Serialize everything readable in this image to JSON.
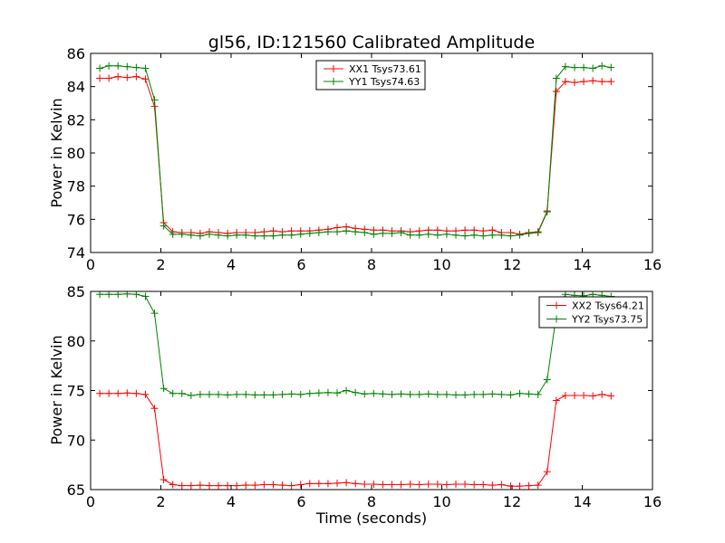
{
  "chart_data": [
    {
      "type": "line",
      "title": "gl56, ID:121560 Calibrated Amplitude",
      "xlabel": "",
      "ylabel": "Power in Kelvin",
      "xlim": [
        0,
        16
      ],
      "ylim": [
        74,
        86
      ],
      "xticks": [
        "0",
        "2",
        "4",
        "6",
        "8",
        "10",
        "12",
        "14",
        "16"
      ],
      "yticks": [
        "74",
        "76",
        "78",
        "80",
        "82",
        "84",
        "86"
      ],
      "grid": false,
      "legend": "top-center",
      "x": [
        0.26,
        0.52,
        0.78,
        1.04,
        1.3,
        1.56,
        1.82,
        2.08,
        2.34,
        2.6,
        2.86,
        3.12,
        3.38,
        3.64,
        3.9,
        4.16,
        4.42,
        4.68,
        4.94,
        5.2,
        5.46,
        5.72,
        5.98,
        6.24,
        6.5,
        6.76,
        7.02,
        7.28,
        7.54,
        7.8,
        8.06,
        8.32,
        8.58,
        8.84,
        9.1,
        9.36,
        9.62,
        9.88,
        10.14,
        10.4,
        10.66,
        10.92,
        11.18,
        11.44,
        11.7,
        11.96,
        12.22,
        12.48,
        12.74,
        13.0,
        13.26,
        13.52,
        13.78,
        14.04,
        14.3,
        14.56,
        14.82
      ],
      "series": [
        {
          "name": "XX1 Tsys73.61",
          "color": "#ff0000",
          "values": [
            84.5,
            84.5,
            84.6,
            84.55,
            84.6,
            84.45,
            82.8,
            75.8,
            75.25,
            75.2,
            75.2,
            75.15,
            75.25,
            75.2,
            75.15,
            75.2,
            75.2,
            75.2,
            75.25,
            75.3,
            75.25,
            75.3,
            75.3,
            75.3,
            75.35,
            75.4,
            75.5,
            75.55,
            75.45,
            75.4,
            75.35,
            75.35,
            75.3,
            75.3,
            75.25,
            75.3,
            75.35,
            75.35,
            75.3,
            75.3,
            75.35,
            75.35,
            75.3,
            75.35,
            75.2,
            75.2,
            75.1,
            75.2,
            75.25,
            76.5,
            83.7,
            84.3,
            84.25,
            84.3,
            84.35,
            84.3,
            84.3
          ]
        },
        {
          "name": "YY1 Tsys74.63",
          "color": "#008000",
          "values": [
            85.1,
            85.25,
            85.25,
            85.2,
            85.15,
            85.1,
            83.2,
            75.6,
            75.1,
            75.1,
            75.05,
            75.0,
            75.1,
            75.05,
            75.0,
            75.05,
            75.05,
            75.0,
            75.0,
            75.0,
            75.05,
            75.05,
            75.1,
            75.15,
            75.2,
            75.25,
            75.25,
            75.3,
            75.25,
            75.2,
            75.1,
            75.15,
            75.15,
            75.2,
            75.05,
            75.05,
            75.1,
            75.05,
            75.1,
            75.05,
            75.0,
            75.05,
            75.0,
            75.05,
            75.05,
            75.0,
            75.05,
            75.15,
            75.2,
            76.45,
            84.5,
            85.2,
            85.15,
            85.15,
            85.1,
            85.25,
            85.15
          ]
        }
      ]
    },
    {
      "type": "line",
      "title": "",
      "xlabel": "Time (seconds)",
      "ylabel": "Power in Kelvin",
      "xlim": [
        0,
        16
      ],
      "ylim": [
        65,
        85
      ],
      "xticks": [
        "0",
        "2",
        "4",
        "6",
        "8",
        "10",
        "12",
        "14",
        "16"
      ],
      "yticks": [
        "65",
        "70",
        "75",
        "80",
        "85"
      ],
      "grid": false,
      "legend": "top-right",
      "x": [
        0.26,
        0.52,
        0.78,
        1.04,
        1.3,
        1.56,
        1.82,
        2.08,
        2.34,
        2.6,
        2.86,
        3.12,
        3.38,
        3.64,
        3.9,
        4.16,
        4.42,
        4.68,
        4.94,
        5.2,
        5.46,
        5.72,
        5.98,
        6.24,
        6.5,
        6.76,
        7.02,
        7.28,
        7.54,
        7.8,
        8.06,
        8.32,
        8.58,
        8.84,
        9.1,
        9.36,
        9.62,
        9.88,
        10.14,
        10.4,
        10.66,
        10.92,
        11.18,
        11.44,
        11.7,
        11.96,
        12.22,
        12.48,
        12.74,
        13.0,
        13.26,
        13.52,
        13.78,
        14.04,
        14.3,
        14.56,
        14.82
      ],
      "series": [
        {
          "name": "XX2 Tsys64.21",
          "color": "#ff0000",
          "values": [
            74.7,
            74.7,
            74.7,
            74.75,
            74.7,
            74.6,
            73.2,
            66.0,
            65.5,
            65.4,
            65.4,
            65.45,
            65.4,
            65.4,
            65.4,
            65.4,
            65.45,
            65.45,
            65.5,
            65.5,
            65.45,
            65.4,
            65.5,
            65.6,
            65.6,
            65.6,
            65.65,
            65.7,
            65.6,
            65.55,
            65.55,
            65.5,
            65.5,
            65.5,
            65.55,
            65.5,
            65.55,
            65.55,
            65.5,
            65.55,
            65.55,
            65.5,
            65.5,
            65.45,
            65.5,
            65.35,
            65.35,
            65.4,
            65.45,
            66.8,
            74.0,
            74.5,
            74.5,
            74.5,
            74.45,
            74.6,
            74.45
          ]
        },
        {
          "name": "YY2 Tsys73.75",
          "color": "#008000",
          "values": [
            84.7,
            84.7,
            84.7,
            84.75,
            84.7,
            84.5,
            82.8,
            75.2,
            74.7,
            74.7,
            74.5,
            74.6,
            74.6,
            74.6,
            74.55,
            74.6,
            74.6,
            74.55,
            74.55,
            74.55,
            74.6,
            74.65,
            74.6,
            74.7,
            74.75,
            74.8,
            74.75,
            75.0,
            74.8,
            74.65,
            74.7,
            74.65,
            74.6,
            74.65,
            74.6,
            74.6,
            74.65,
            74.6,
            74.6,
            74.55,
            74.55,
            74.6,
            74.6,
            74.65,
            74.6,
            74.55,
            74.7,
            74.65,
            74.6,
            76.1,
            82.6,
            84.7,
            84.6,
            84.55,
            84.7,
            84.6,
            84.5
          ]
        }
      ]
    }
  ]
}
